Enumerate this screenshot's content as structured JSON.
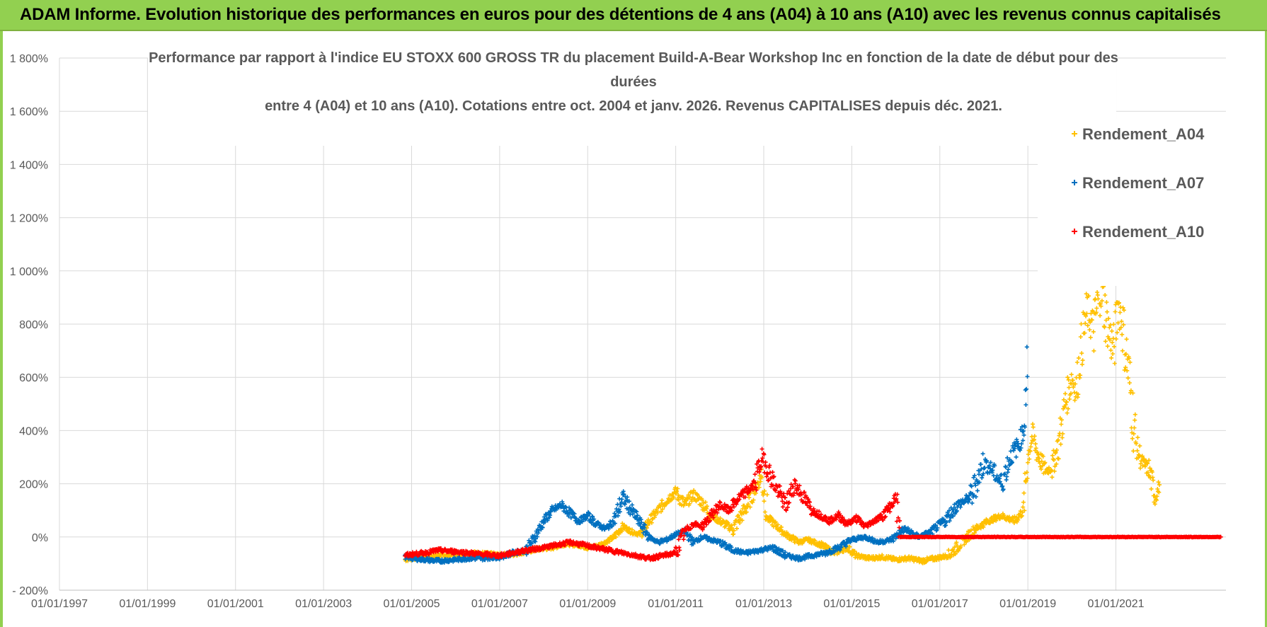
{
  "banner": {
    "title": "ADAM Informe. Evolution historique des performances en euros pour des détentions de 4 ans (A04) à 10 ans (A10) avec les revenus connus capitalisés"
  },
  "colors": {
    "banner_bg": "#92d050",
    "grid": "#d9d9d9",
    "axis_text": "#595959",
    "series_A04": "#ffc000",
    "series_A07": "#0070c0",
    "series_A10": "#ff0000"
  },
  "chart_data": {
    "type": "scatter",
    "title_lines": [
      "Performance par rapport à l'indice EU STOXX 600 GROSS TR  du placement Build-A-Bear Workshop Inc en fonction de la date de début pour des durées",
      "entre 4 (A04) et 10 ans (A10).  Cotations entre oct. 2004 et janv. 2026.  Revenus CAPITALISES  depuis déc. 2021."
    ],
    "xlabel": "",
    "ylabel": "",
    "xlim": [
      1997.0,
      2023.5
    ],
    "ylim": [
      -200,
      1800
    ],
    "y_ticks": [
      -200,
      0,
      200,
      400,
      600,
      800,
      1000,
      1200,
      1400,
      1600,
      1800
    ],
    "y_tick_labels": [
      "- 200%",
      "0%",
      "200%",
      "400%",
      "600%",
      "800%",
      "1 000%",
      "1 200%",
      "1 400%",
      "1 600%",
      "1 800%"
    ],
    "x_ticks": [
      1997,
      1999,
      2001,
      2003,
      2005,
      2007,
      2009,
      2011,
      2013,
      2015,
      2017,
      2019,
      2021
    ],
    "x_tick_labels": [
      "01/01/1997",
      "01/01/1999",
      "01/01/2001",
      "01/01/2003",
      "01/01/2005",
      "01/01/2007",
      "01/01/2009",
      "01/01/2011",
      "01/01/2013",
      "01/01/2015",
      "01/01/2017",
      "01/01/2019",
      "01/01/2021"
    ],
    "legend_position": "right",
    "marker": "+",
    "series": [
      {
        "name": "Rendement_A04",
        "x": [
          2004.85,
          2005.0,
          2005.3,
          2005.6,
          2006.0,
          2006.3,
          2006.6,
          2007.0,
          2007.3,
          2007.6,
          2007.9,
          2008.2,
          2008.5,
          2008.8,
          2009.0,
          2009.2,
          2009.4,
          2009.6,
          2009.8,
          2010.0,
          2010.2,
          2010.4,
          2010.6,
          2010.8,
          2011.0,
          2011.2,
          2011.4,
          2011.6,
          2011.8,
          2012.0,
          2012.3,
          2012.6,
          2012.8,
          2012.95,
          2013.1,
          2013.3,
          2013.5,
          2013.8,
          2014.0,
          2014.3,
          2014.6,
          2014.9,
          2015.1,
          2015.4,
          2015.7,
          2016.0,
          2016.3,
          2016.6,
          2016.9,
          2017.2,
          2017.5,
          2017.8,
          2018.1,
          2018.4,
          2018.7,
          2018.9,
          2019.0,
          2019.1,
          2019.25,
          2019.4,
          2019.55,
          2019.7,
          2019.85,
          2020.0,
          2020.1,
          2020.2,
          2020.35,
          2020.5,
          2020.65,
          2020.8,
          2020.95,
          2021.05,
          2021.15,
          2021.3,
          2021.45,
          2021.6,
          2021.75,
          2021.9,
          2022.0
        ],
        "values": [
          -85,
          -80,
          -75,
          -70,
          -65,
          -60,
          -62,
          -68,
          -65,
          -55,
          -45,
          -40,
          -25,
          -30,
          -40,
          -35,
          -20,
          0,
          40,
          20,
          10,
          60,
          100,
          140,
          170,
          120,
          160,
          130,
          80,
          60,
          30,
          110,
          180,
          230,
          70,
          40,
          10,
          -20,
          -10,
          -30,
          -60,
          -40,
          -70,
          -80,
          -75,
          -85,
          -80,
          -90,
          -80,
          -70,
          -20,
          30,
          60,
          80,
          60,
          100,
          300,
          380,
          300,
          250,
          260,
          350,
          500,
          600,
          550,
          700,
          850,
          780,
          950,
          800,
          700,
          880,
          800,
          600,
          350,
          280,
          250,
          150,
          200
        ]
      },
      {
        "name": "Rendement_A07",
        "x": [
          2004.85,
          2005.0,
          2005.3,
          2005.6,
          2006.0,
          2006.3,
          2006.6,
          2007.0,
          2007.3,
          2007.6,
          2007.8,
          2008.0,
          2008.2,
          2008.4,
          2008.6,
          2008.8,
          2009.0,
          2009.2,
          2009.4,
          2009.6,
          2009.8,
          2010.0,
          2010.2,
          2010.4,
          2010.6,
          2010.8,
          2011.0,
          2011.2,
          2011.4,
          2011.6,
          2011.8,
          2012.0,
          2012.3,
          2012.6,
          2012.9,
          2013.2,
          2013.5,
          2013.8,
          2014.1,
          2014.4,
          2014.7,
          2015.0,
          2015.3,
          2015.6,
          2015.9,
          2016.2,
          2016.5,
          2016.8,
          2017.1,
          2017.4,
          2017.7,
          2018.0,
          2018.2,
          2018.4,
          2018.6,
          2018.8,
          2018.9,
          2019.0
        ],
        "values": [
          -75,
          -80,
          -85,
          -90,
          -85,
          -80,
          -80,
          -75,
          -60,
          -50,
          0,
          60,
          100,
          120,
          90,
          60,
          80,
          50,
          30,
          60,
          150,
          100,
          50,
          0,
          -20,
          -10,
          10,
          20,
          -20,
          0,
          -10,
          -20,
          -50,
          -60,
          -50,
          -40,
          -70,
          -80,
          -70,
          -60,
          -40,
          -10,
          0,
          -20,
          -10,
          30,
          0,
          20,
          60,
          120,
          150,
          280,
          250,
          200,
          300,
          350,
          400,
          700
        ]
      },
      {
        "name": "Rendement_A10",
        "x": [
          2004.85,
          2005.0,
          2005.3,
          2005.6,
          2006.0,
          2006.3,
          2006.6,
          2007.0,
          2007.3,
          2007.6,
          2008.0,
          2008.3,
          2008.6,
          2008.9,
          2009.2,
          2009.5,
          2009.8,
          2010.1,
          2010.4,
          2010.7,
          2011.0,
          2011.2,
          2011.4,
          2011.6,
          2011.8,
          2012.0,
          2012.2,
          2012.4,
          2012.6,
          2012.8,
          2012.95,
          2013.1,
          2013.3,
          2013.5,
          2013.7,
          2013.9,
          2014.1,
          2014.3,
          2014.5,
          2014.7,
          2014.9,
          2015.1,
          2015.3,
          2015.5,
          2015.7,
          2015.9,
          2016.0,
          2016.1,
          2016.5,
          2017.0,
          2017.5,
          2018.0,
          2018.5,
          2019.0,
          2019.5,
          2020.0,
          2020.5,
          2021.0,
          2021.5,
          2022.0,
          2022.5,
          2023.0,
          2023.4
        ],
        "values": [
          -70,
          -65,
          -60,
          -50,
          -55,
          -60,
          -65,
          -70,
          -60,
          -50,
          -40,
          -30,
          -20,
          -30,
          -40,
          -50,
          -60,
          -70,
          -80,
          -70,
          -60,
          20,
          50,
          40,
          80,
          120,
          100,
          140,
          170,
          200,
          300,
          250,
          180,
          120,
          200,
          150,
          100,
          80,
          60,
          80,
          50,
          70,
          40,
          60,
          80,
          120,
          150,
          0,
          0,
          0,
          0,
          0,
          0,
          0,
          0,
          0,
          0,
          0,
          0,
          0,
          0,
          0,
          0
        ]
      }
    ]
  }
}
